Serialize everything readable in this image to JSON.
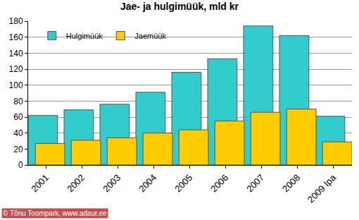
{
  "chart_data": {
    "type": "bar",
    "title": "Jae- ja hulgimüük, mld kr",
    "categories": [
      "2001",
      "2002",
      "2003",
      "2004",
      "2005",
      "2006",
      "2007",
      "2008",
      "2009 Ipa"
    ],
    "series": [
      {
        "name": "Hulgimüük",
        "color": "#33cccc",
        "values": [
          62,
          69,
          76,
          91,
          116,
          133,
          174,
          162,
          61
        ]
      },
      {
        "name": "Jaemüük",
        "color": "#ffcc00",
        "values": [
          27,
          31,
          34,
          40,
          44,
          55,
          66,
          70,
          29
        ]
      }
    ],
    "ylim": [
      0,
      180
    ],
    "yticks": [
      0,
      20,
      40,
      60,
      80,
      100,
      120,
      140,
      160,
      180
    ],
    "grid": true,
    "legend": "top-left",
    "annotations": [
      "© Tõnu Toompark, www.adaur.ee"
    ]
  }
}
